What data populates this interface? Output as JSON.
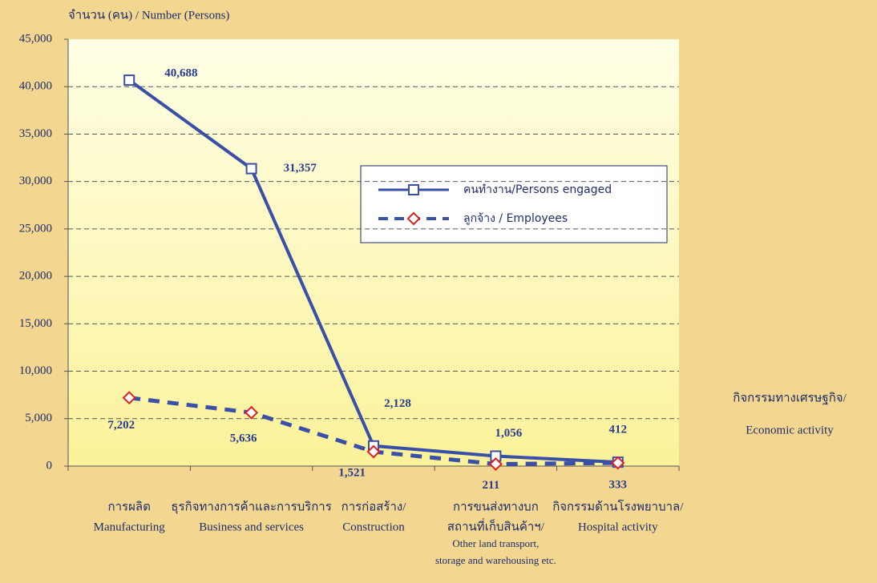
{
  "chart_data": {
    "type": "line",
    "y_label": "จำนวน (คน) / Number  (Persons)",
    "x_label": [
      "กิจกรรมทางเศรษฐกิจ/",
      "Economic activity"
    ],
    "categories": [
      [
        "การผลิต",
        "Manufacturing"
      ],
      [
        "ธุรกิจทางการค้าและการบริการ",
        "Business and services"
      ],
      [
        "การก่อสร้าง/",
        "Construction"
      ],
      [
        "การขนส่งทางบก",
        "สถานที่เก็บสินค้าฯ/",
        "Other land transport,",
        "storage and warehousing etc."
      ],
      [
        "กิจกรรมด้านโรงพยาบาล/",
        "Hospital activity"
      ]
    ],
    "series": [
      {
        "name": "คนทำงาน/Persons engaged",
        "color": "#3a4fa8",
        "values": [
          40688,
          31357,
          2128,
          1056,
          412
        ],
        "value_labels": [
          "40,688",
          "31,357",
          "2,128",
          "1,056",
          "412"
        ]
      },
      {
        "name": "ลูกจ้าง / Employees",
        "color": "#3a4fa8",
        "marker_color": "#e02020",
        "dashed": true,
        "values": [
          7202,
          5636,
          1521,
          211,
          333
        ],
        "value_labels": [
          "7,202",
          "5,636",
          "1,521",
          "211",
          "333"
        ]
      }
    ],
    "ylim": [
      0,
      45000
    ],
    "yticks": [
      0,
      {
        "value": 5000,
        "label": "5,000"
      },
      {
        "value": 10000,
        "label": "10,000"
      },
      {
        "value": 15000,
        "label": "15,000"
      },
      {
        "value": 20000,
        "label": "20,000"
      },
      {
        "value": 25000,
        "label": "25,000"
      },
      {
        "value": 30000,
        "label": "30,000"
      },
      {
        "value": 35000,
        "label": "35,000"
      },
      {
        "value": 40000,
        "label": "40,000"
      },
      {
        "value": 45000,
        "label": "45,000"
      }
    ],
    "grid": true
  }
}
